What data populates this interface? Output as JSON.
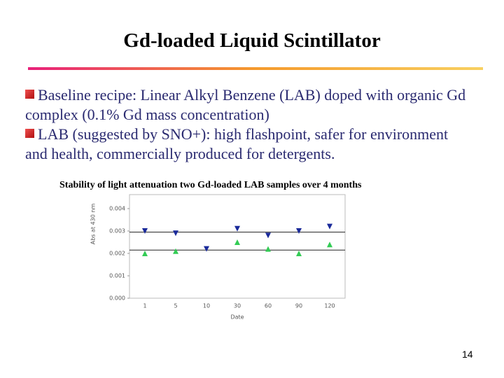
{
  "header": {
    "title": "Gd-loaded Liquid Scintillator"
  },
  "bullets": [
    "Baseline recipe: Linear Alkyl Benzene (LAB) doped with organic Gd complex (0.1% Gd mass concentration)",
    "LAB (suggested by SNO+): high flashpoint, safer for environment and health, commercially produced for detergents."
  ],
  "chart_data": {
    "type": "scatter",
    "title": "Stability of light attenuation two Gd-loaded LAB samples over 4 months",
    "x_label": "Date",
    "y_label": "Abs at 430 nm",
    "categories": [
      "1",
      "5",
      "10",
      "30",
      "60",
      "90",
      "120"
    ],
    "series": [
      {
        "color": "#1a2a9a",
        "marker": "down",
        "values": [
          0.003,
          0.0029,
          0.0022,
          0.0031,
          0.0028,
          0.003,
          0.0032
        ]
      },
      {
        "color": "#33cc55",
        "marker": "up",
        "values": [
          0.002,
          0.0021,
          null,
          0.0025,
          0.0022,
          0.002,
          0.0024
        ]
      }
    ],
    "reference_lines": [
      0.00295,
      0.00215
    ],
    "ylim": [
      0,
      0.0045
    ],
    "yticks": [
      {
        "value": 0,
        "label": "0.000"
      },
      {
        "value": 0.001,
        "label": "0.001"
      },
      {
        "value": 0.002,
        "label": "0.002"
      },
      {
        "value": 0.003,
        "label": "0.003"
      },
      {
        "value": 0.004,
        "label": "0.004"
      }
    ]
  },
  "page_number": "14"
}
